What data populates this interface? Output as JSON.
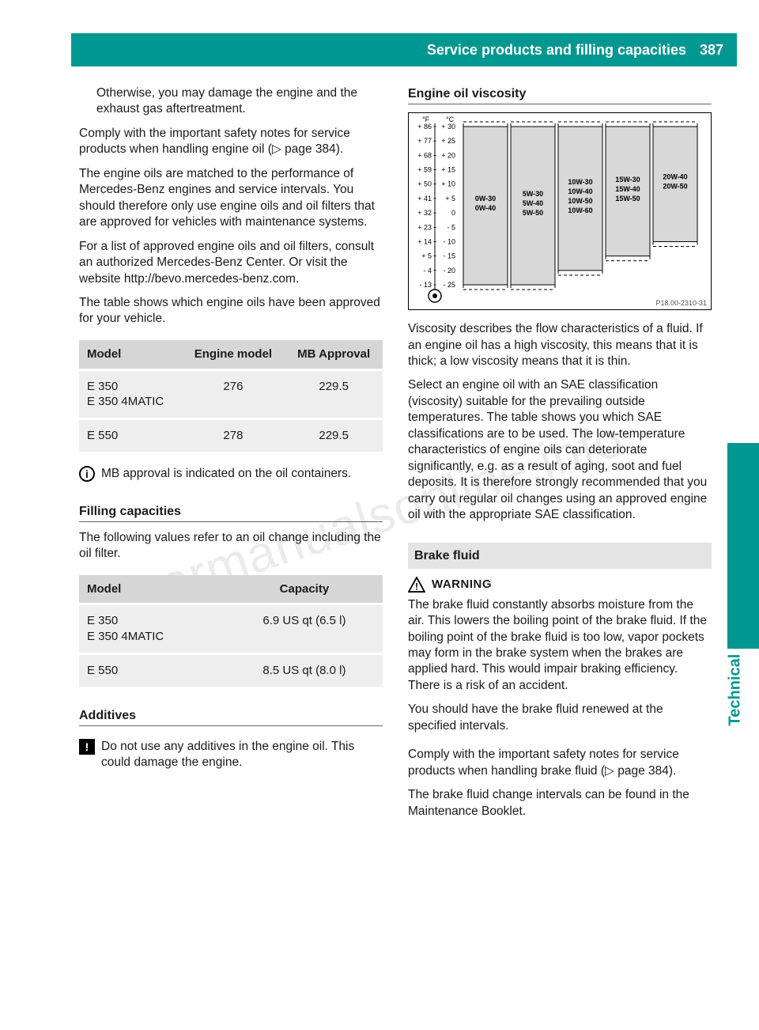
{
  "watermark": "carmanualsonline.info",
  "header": {
    "title": "Service products and filling capacities",
    "page_number": "387",
    "bar_color": "#009790"
  },
  "side_tab": {
    "label": "Technical data",
    "color": "#009790"
  },
  "left": {
    "intro_cont": "Otherwise, you may damage the engine and the exhaust gas aftertreatment.",
    "p1": "Comply with the important safety notes for service products when handling engine oil (▷ page 384).",
    "p2": "The engine oils are matched to the performance of Mercedes-Benz engines and service intervals. You should therefore only use engine oils and oil filters that are approved for vehicles with maintenance systems.",
    "p3": "For a list of approved engine oils and oil filters, consult an authorized Mercedes-Benz Center. Or visit the website http://bevo.mercedes-benz.com.",
    "p4": "The table shows which engine oils have been approved for your vehicle.",
    "approval_table": {
      "columns": [
        "Model",
        "Engine model",
        "MB Approval"
      ],
      "rows": [
        [
          "E 350\nE 350 4MATIC",
          "276",
          "229.5"
        ],
        [
          "E 550",
          "278",
          "229.5"
        ]
      ]
    },
    "info_note": "MB approval is indicated on the oil containers.",
    "h_fill": "Filling capacities",
    "fill_intro": "The following values refer to an oil change including the oil filter.",
    "fill_table": {
      "columns": [
        "Model",
        "Capacity"
      ],
      "rows": [
        [
          "E 350\nE 350 4MATIC",
          "6.9 US qt (6.5 l)"
        ],
        [
          "E 550",
          "8.5 US qt (8.0 l)"
        ]
      ]
    },
    "h_add": "Additives",
    "add_note": "Do not use any additives in the engine oil. This could damage the engine."
  },
  "right": {
    "h_visc": "Engine oil viscosity",
    "chart": {
      "image_code": "P18.00-2310-31",
      "f_ticks": [
        "+ 86",
        "+ 77",
        "+ 68",
        "+ 59",
        "+ 50",
        "+ 41",
        "+ 32",
        "+ 23",
        "+ 14",
        "+ 5",
        "- 4",
        "- 13"
      ],
      "c_ticks": [
        "+ 30",
        "+ 25",
        "+ 20",
        "+ 15",
        "+ 10",
        "+ 5",
        "0",
        "- 5",
        "- 10",
        "- 15",
        "- 20",
        "- 25"
      ],
      "bars": [
        {
          "labels": [
            "0W-30",
            "0W-40"
          ],
          "top_c": 30,
          "bottom_c": -25
        },
        {
          "labels": [
            "5W-30",
            "5W-40",
            "5W-50"
          ],
          "top_c": 30,
          "bottom_c": -25
        },
        {
          "labels": [
            "10W-30",
            "10W-40",
            "10W-50",
            "10W-60"
          ],
          "top_c": 30,
          "bottom_c": -20
        },
        {
          "labels": [
            "15W-30",
            "15W-40",
            "15W-50"
          ],
          "top_c": 30,
          "bottom_c": -15
        },
        {
          "labels": [
            "20W-40",
            "20W-50"
          ],
          "top_c": 30,
          "bottom_c": -10
        }
      ],
      "bg": "#ffffff",
      "bar_fill": "#d8d8d8",
      "bar_stroke": "#000000",
      "axis_font_size": 9,
      "label_font_size": 9,
      "dash": "4,3"
    },
    "visc_p1": "Viscosity describes the flow characteristics of a fluid. If an engine oil has a high viscosity, this means that it is thick; a low viscosity means that it is thin.",
    "visc_p2": "Select an engine oil with an SAE classification (viscosity) suitable for the prevailing outside temperatures. The table shows you which SAE classifications are to be used. The low-temperature characteristics of engine oils can deteriorate significantly, e.g. as a result of aging, soot and fuel deposits. It is therefore strongly recommended that you carry out regular oil changes using an approved engine oil with the appropriate SAE classification.",
    "h_brake": "Brake fluid",
    "warning_label": "WARNING",
    "brake_warn_p1": "The brake fluid constantly absorbs moisture from the air. This lowers the boiling point of the brake fluid. If the boiling point of the brake fluid is too low, vapor pockets may form in the brake system when the brakes are applied hard. This would impair braking efficiency. There is a risk of an accident.",
    "brake_warn_p2": "You should have the brake fluid renewed at the specified intervals.",
    "brake_p1": "Comply with the important safety notes for service products when handling brake fluid (▷ page 384).",
    "brake_p2": "The brake fluid change intervals can be found in the Maintenance Booklet."
  }
}
